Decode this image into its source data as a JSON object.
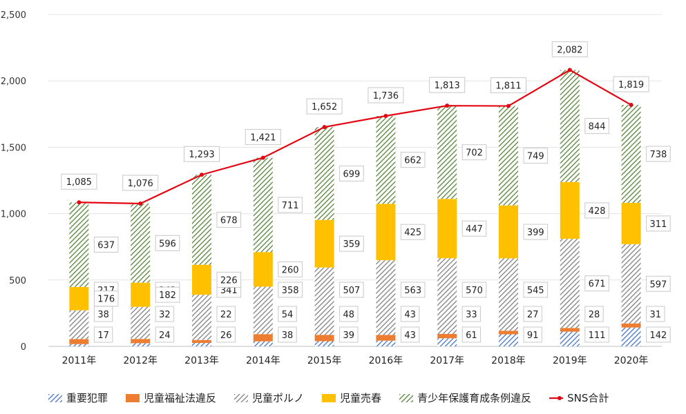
{
  "chart_data": {
    "type": "bar",
    "stacked": true,
    "categories": [
      "2011年",
      "2012年",
      "2013年",
      "2014年",
      "2015年",
      "2016年",
      "2017年",
      "2018年",
      "2019年",
      "2020年"
    ],
    "series": [
      {
        "name": "重要犯罪",
        "values": [
          17,
          24,
          26,
          38,
          39,
          43,
          61,
          91,
          111,
          142
        ],
        "color": "#4472C4",
        "pattern": "hatch"
      },
      {
        "name": "児童福祉法違反",
        "values": [
          38,
          32,
          22,
          54,
          48,
          43,
          33,
          27,
          28,
          31
        ],
        "color": "#ED7D31",
        "pattern": "solid"
      },
      {
        "name": "児童ポルノ",
        "values": [
          217,
          242,
          341,
          358,
          507,
          563,
          570,
          545,
          671,
          597
        ],
        "color": "#7F7F7F",
        "pattern": "hatch"
      },
      {
        "name": "児童売春",
        "values": [
          176,
          182,
          226,
          260,
          359,
          425,
          447,
          399,
          428,
          311
        ],
        "color": "#FFC000",
        "pattern": "solid"
      },
      {
        "name": "青少年保護育成条例違反",
        "values": [
          637,
          596,
          678,
          711,
          699,
          662,
          702,
          749,
          844,
          738
        ],
        "color": "#548235",
        "pattern": "hatch"
      }
    ],
    "line": {
      "name": "SNS合計",
      "values": [
        1085,
        1076,
        1293,
        1421,
        1652,
        1736,
        1813,
        1811,
        2082,
        1819
      ],
      "labels": [
        "1,085",
        "1,076",
        "1,293",
        "1,421",
        "1,652",
        "1,736",
        "1,813",
        "1,811",
        "2,082",
        "1,819"
      ],
      "color": "#E30613"
    },
    "yticks": [
      "0",
      "500",
      "1,000",
      "1,500",
      "2,000",
      "2,500"
    ],
    "ylim": [
      0,
      2500
    ],
    "grid": true,
    "legend_position": "bottom"
  }
}
